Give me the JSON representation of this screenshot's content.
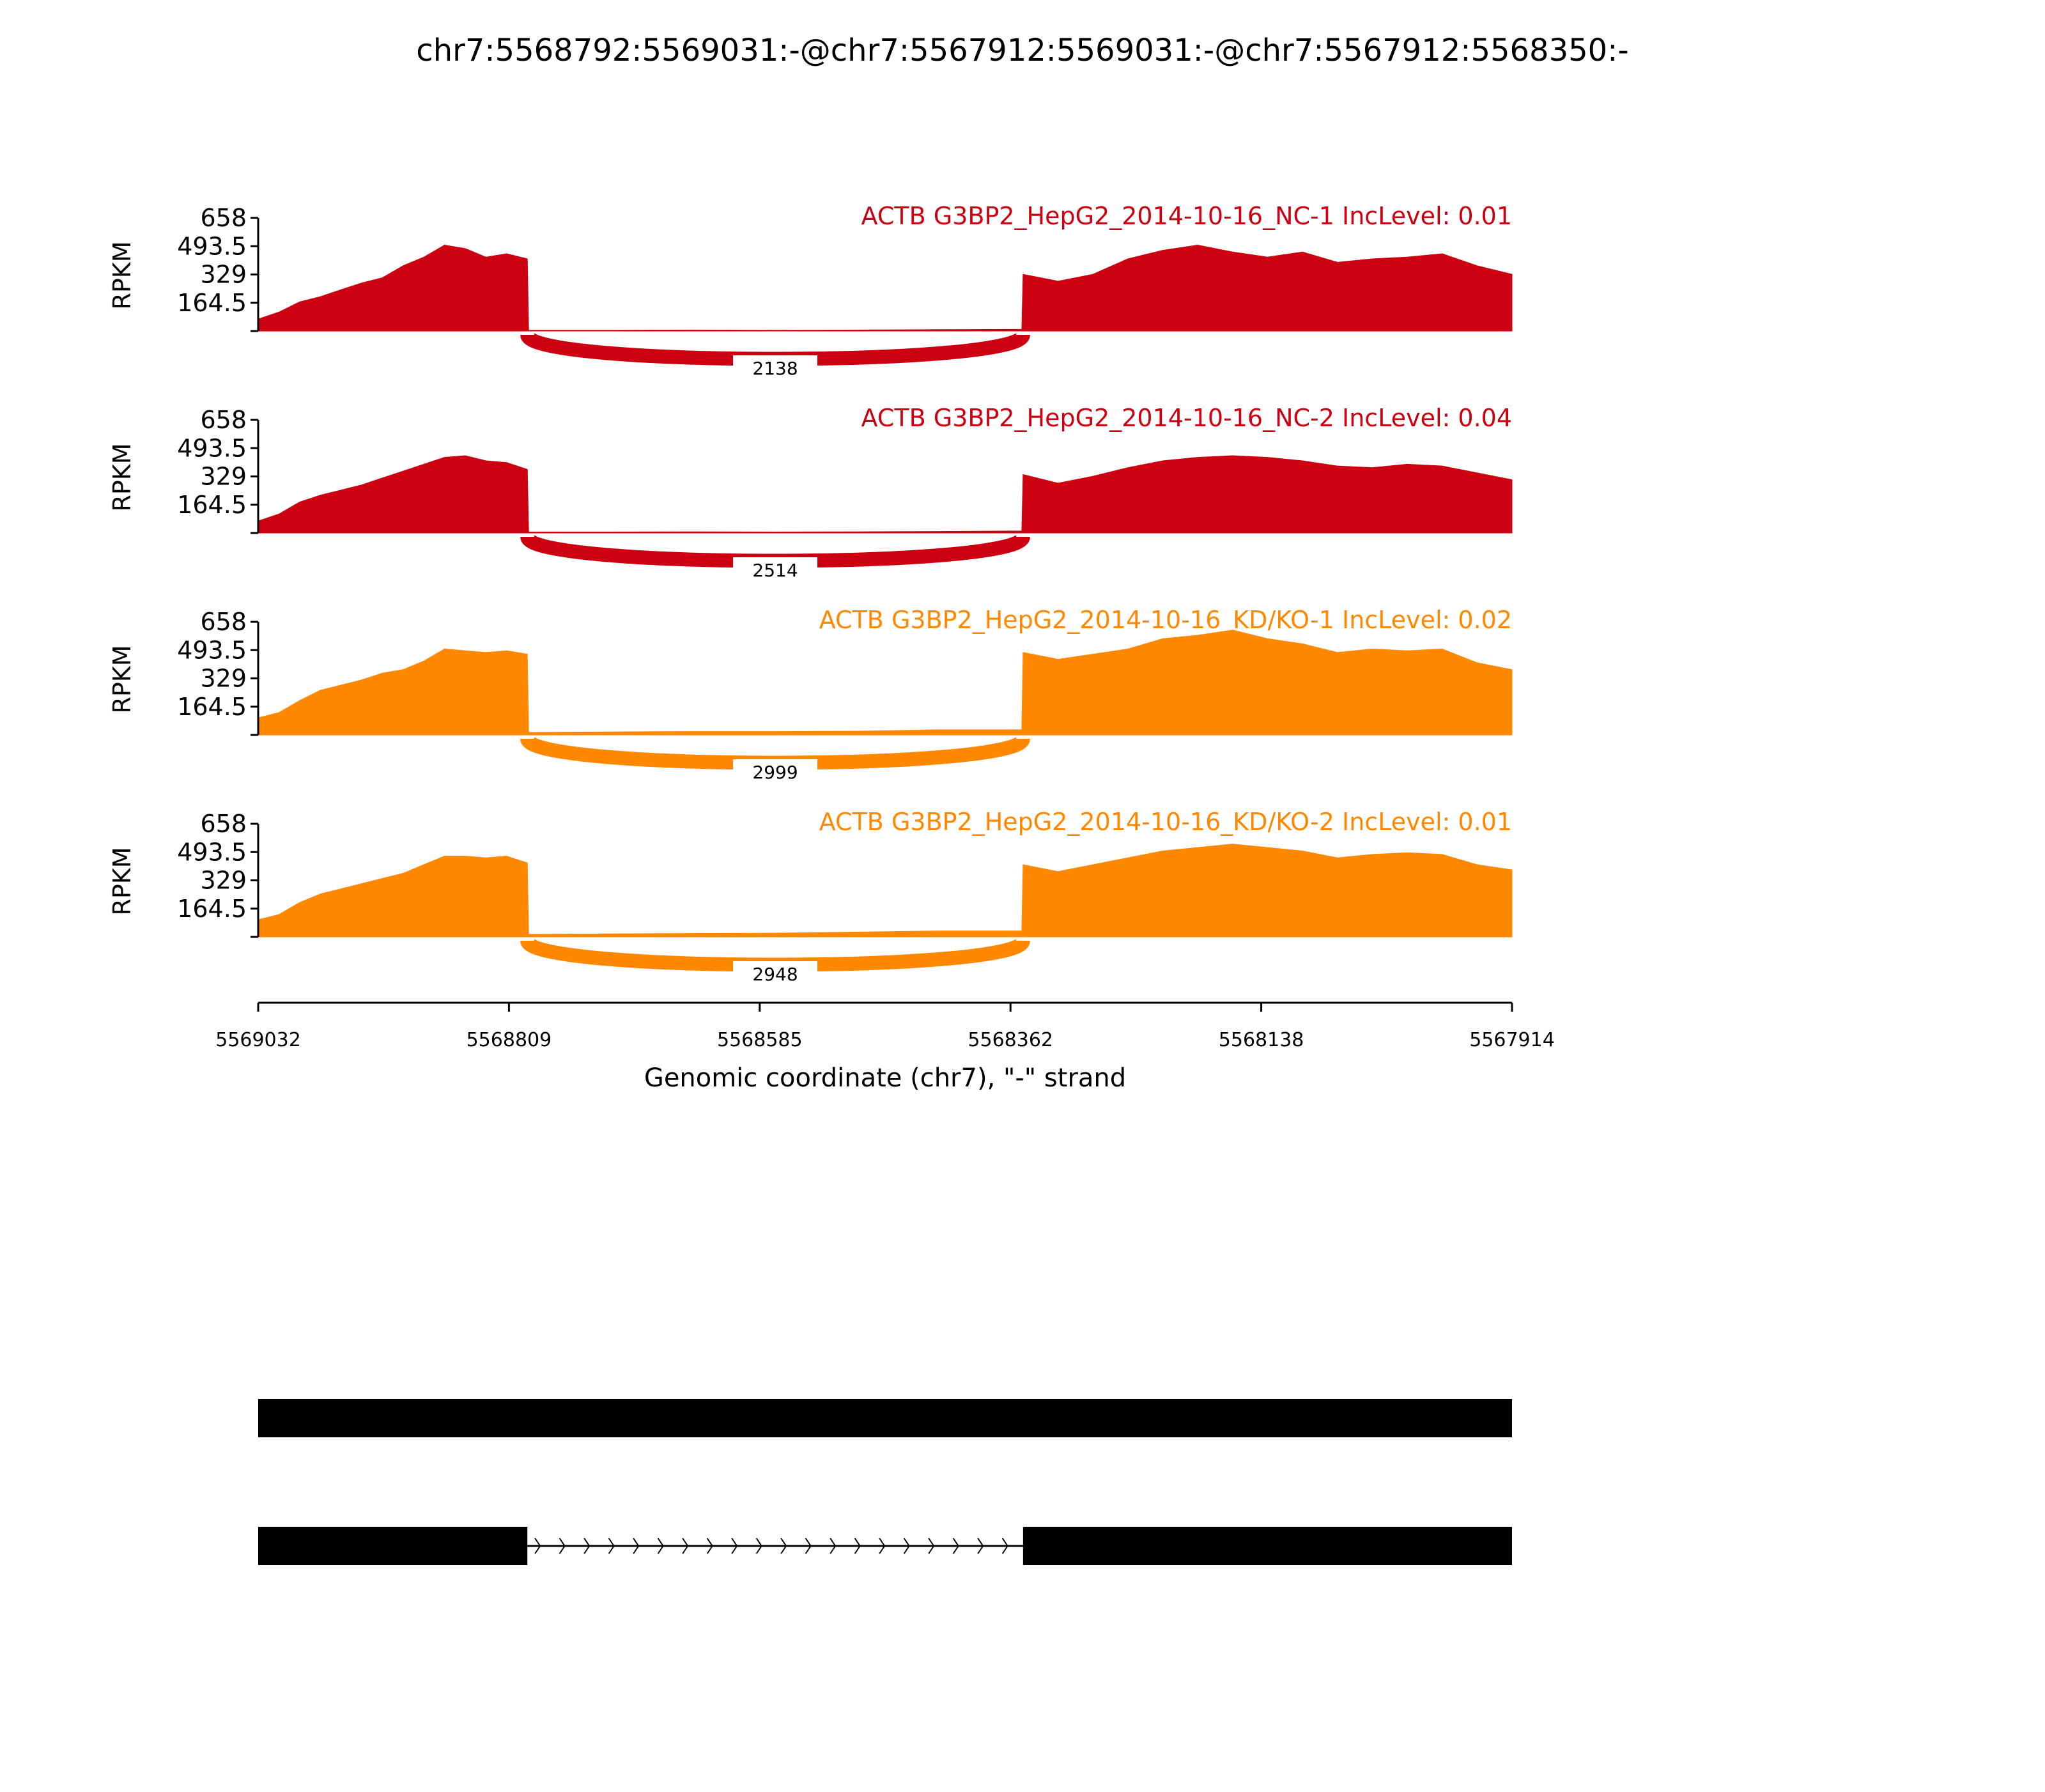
{
  "chart_data": {
    "type": "area",
    "title": "chr7:5568792:5569031:-@chr7:5567912:5569031:-@chr7:5567912:5568350:-",
    "xlabel": "Genomic coordinate (chr7), \"-\" strand",
    "ylabel": "RPKM",
    "xlim": [
      5569032,
      5567914
    ],
    "x_ticks": [
      "5569032",
      "5568809",
      "5568585",
      "5568362",
      "5568138",
      "5567914"
    ],
    "y_ticks": [
      "164.5",
      "329",
      "493.5",
      "658"
    ],
    "ylim": [
      0,
      658
    ],
    "exon1": [
      5569032,
      5568792
    ],
    "exon2": [
      5568350,
      5567914
    ],
    "tracks": [
      {
        "label": "ACTB G3BP2_HepG2_2014-10-16_NC-1 IncLevel: 0.01",
        "color": "#cc0011",
        "junction_count": "2138",
        "exon1_cov": [
          70,
          110,
          170,
          200,
          240,
          280,
          310,
          380,
          430,
          500,
          480,
          430,
          450,
          420
        ],
        "intron_cov": [
          5,
          5,
          6,
          5,
          6,
          8,
          10
        ],
        "exon2_cov": [
          330,
          290,
          330,
          420,
          470,
          500,
          460,
          430,
          460,
          400,
          420,
          430,
          450,
          380,
          330
        ]
      },
      {
        "label": "ACTB G3BP2_HepG2_2014-10-16_NC-2 IncLevel: 0.04",
        "color": "#cc0011",
        "junction_count": "2514",
        "exon1_cov": [
          70,
          110,
          180,
          220,
          250,
          280,
          320,
          360,
          400,
          440,
          450,
          420,
          410,
          370
        ],
        "intron_cov": [
          6,
          6,
          7,
          6,
          7,
          9,
          12
        ],
        "exon2_cov": [
          340,
          290,
          330,
          380,
          420,
          440,
          450,
          440,
          420,
          390,
          380,
          400,
          390,
          350,
          310
        ]
      },
      {
        "label": "ACTB G3BP2_HepG2_2014-10-16_KD/KO-1 IncLevel: 0.02",
        "color": "#ff8800",
        "junction_count": "2999",
        "exon1_cov": [
          100,
          130,
          200,
          260,
          290,
          320,
          360,
          380,
          430,
          500,
          490,
          480,
          490,
          470
        ],
        "intron_cov": [
          15,
          18,
          20,
          20,
          22,
          30,
          30
        ],
        "exon2_cov": [
          480,
          440,
          470,
          500,
          560,
          580,
          610,
          560,
          530,
          480,
          500,
          490,
          500,
          420,
          380
        ]
      },
      {
        "label": "ACTB G3BP2_HepG2_2014-10-16_KD/KO-2 IncLevel: 0.01",
        "color": "#ff8800",
        "junction_count": "2948",
        "exon1_cov": [
          100,
          130,
          200,
          250,
          280,
          310,
          340,
          370,
          420,
          470,
          470,
          460,
          470,
          430
        ],
        "intron_cov": [
          15,
          18,
          20,
          22,
          28,
          35,
          35
        ],
        "exon2_cov": [
          420,
          380,
          420,
          460,
          500,
          520,
          540,
          520,
          500,
          460,
          480,
          490,
          480,
          420,
          390
        ]
      }
    ]
  }
}
